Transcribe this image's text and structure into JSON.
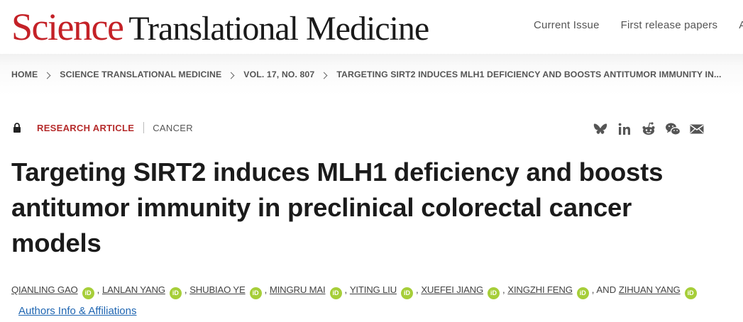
{
  "header": {
    "logo_science": "Science",
    "logo_rest": "Translational Medicine",
    "nav": [
      "Current Issue",
      "First release papers",
      "A"
    ]
  },
  "breadcrumb": [
    "HOME",
    "SCIENCE TRANSLATIONAL MEDICINE",
    "VOL. 17, NO. 807",
    "TARGETING SIRT2 INDUCES MLH1 DEFICIENCY AND BOOSTS ANTITUMOR IMMUNITY IN..."
  ],
  "article": {
    "type": "RESEARCH ARTICLE",
    "subject": "CANCER",
    "title": "Targeting SIRT2 induces MLH1 deficiency and boosts antitumor immunity in preclinical colorectal cancer models",
    "authors": [
      "QIANLING GAO",
      "LANLAN YANG",
      "SHUBIAO YE",
      "MINGRU MAI",
      "YITING LIU",
      "XUEFEI JIANG",
      "XINGZHI FENG",
      "ZIHUAN YANG"
    ],
    "orcid_label": "iD",
    "and_text": "AND",
    "authors_info_link": "Authors Info & Affiliations"
  },
  "share_icons": [
    "bluesky-icon",
    "linkedin-icon",
    "reddit-icon",
    "wechat-icon",
    "email-icon"
  ],
  "colors": {
    "brand_red": "#c42127",
    "type_red": "#b52b2b",
    "orcid_green": "#a6ce39",
    "link_blue": "#1f66b2"
  }
}
